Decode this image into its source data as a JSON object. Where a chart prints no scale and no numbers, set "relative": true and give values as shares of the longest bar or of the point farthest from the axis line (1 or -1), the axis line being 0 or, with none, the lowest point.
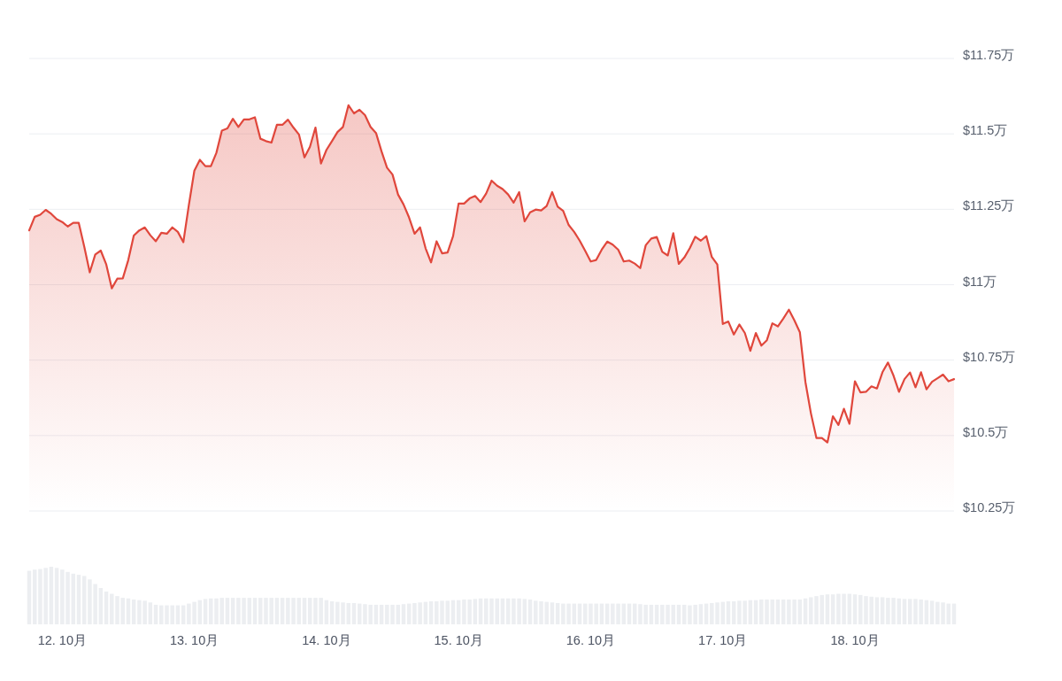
{
  "chart_data": [
    {
      "type": "area",
      "color": "#e0473c",
      "grid": "y",
      "tick_labels": "y",
      "xlim": [
        "--10-11T18:00",
        "--10-18T18:00"
      ],
      "ylim": [
        10.25,
        11.75
      ],
      "yticks": [
        {
          "value": 10.25,
          "label": "$10.25万"
        },
        {
          "value": 10.5,
          "label": "$10.5万"
        },
        {
          "value": 10.75,
          "label": "$10.75万"
        },
        {
          "value": 11,
          "label": "$11万"
        },
        {
          "value": 11.25,
          "label": "$11.25万"
        },
        {
          "value": 11.5,
          "label": "$11.5万"
        },
        {
          "value": 11.75,
          "label": "$11.75万"
        }
      ],
      "x": [
        "--10-11T18:00",
        "--10-11T19:00",
        "--10-11T20:00",
        "--10-11T21:00",
        "--10-11T22:00",
        "--10-11T23:00",
        "--10-12T00:00",
        "--10-12T01:00",
        "--10-12T02:00",
        "--10-12T03:00",
        "--10-12T04:00",
        "--10-12T05:00",
        "--10-12T06:00",
        "--10-12T07:00",
        "--10-12T08:00",
        "--10-12T09:00",
        "--10-12T10:00",
        "--10-12T11:00",
        "--10-12T12:00",
        "--10-12T13:00",
        "--10-12T14:00",
        "--10-12T15:00",
        "--10-12T16:00",
        "--10-12T17:00",
        "--10-12T18:00",
        "--10-12T19:00",
        "--10-12T20:00",
        "--10-12T21:00",
        "--10-12T22:00",
        "--10-12T23:00",
        "--10-13T00:00",
        "--10-13T01:00",
        "--10-13T02:00",
        "--10-13T03:00",
        "--10-13T04:00",
        "--10-13T05:00",
        "--10-13T06:00",
        "--10-13T07:00",
        "--10-13T08:00",
        "--10-13T09:00",
        "--10-13T10:00",
        "--10-13T11:00",
        "--10-13T12:00",
        "--10-13T13:00",
        "--10-13T14:00",
        "--10-13T15:00",
        "--10-13T16:00",
        "--10-13T17:00",
        "--10-13T18:00",
        "--10-13T19:00",
        "--10-13T20:00",
        "--10-13T21:00",
        "--10-13T22:00",
        "--10-13T23:00",
        "--10-14T00:00",
        "--10-14T01:00",
        "--10-14T02:00",
        "--10-14T03:00",
        "--10-14T04:00",
        "--10-14T05:00",
        "--10-14T06:00",
        "--10-14T07:00",
        "--10-14T08:00",
        "--10-14T09:00",
        "--10-14T10:00",
        "--10-14T11:00",
        "--10-14T12:00",
        "--10-14T13:00",
        "--10-14T14:00",
        "--10-14T15:00",
        "--10-14T16:00",
        "--10-14T17:00",
        "--10-14T18:00",
        "--10-14T19:00",
        "--10-14T20:00",
        "--10-14T21:00",
        "--10-14T22:00",
        "--10-14T23:00",
        "--10-15T00:00",
        "--10-15T01:00",
        "--10-15T02:00",
        "--10-15T03:00",
        "--10-15T04:00",
        "--10-15T05:00",
        "--10-15T06:00",
        "--10-15T07:00",
        "--10-15T08:00",
        "--10-15T09:00",
        "--10-15T10:00",
        "--10-15T11:00",
        "--10-15T12:00",
        "--10-15T13:00",
        "--10-15T14:00",
        "--10-15T15:00",
        "--10-15T16:00",
        "--10-15T17:00",
        "--10-15T18:00",
        "--10-15T19:00",
        "--10-15T20:00",
        "--10-15T21:00",
        "--10-15T22:00",
        "--10-15T23:00",
        "--10-16T00:00",
        "--10-16T01:00",
        "--10-16T02:00",
        "--10-16T03:00",
        "--10-16T04:00",
        "--10-16T05:00",
        "--10-16T06:00",
        "--10-16T07:00",
        "--10-16T08:00",
        "--10-16T09:00",
        "--10-16T10:00",
        "--10-16T11:00",
        "--10-16T12:00",
        "--10-16T13:00",
        "--10-16T14:00",
        "--10-16T15:00",
        "--10-16T16:00",
        "--10-16T17:00",
        "--10-16T18:00",
        "--10-16T19:00",
        "--10-16T20:00",
        "--10-16T21:00",
        "--10-16T22:00",
        "--10-16T23:00",
        "--10-17T00:00",
        "--10-17T01:00",
        "--10-17T02:00",
        "--10-17T03:00",
        "--10-17T04:00",
        "--10-17T05:00",
        "--10-17T06:00",
        "--10-17T07:00",
        "--10-17T08:00",
        "--10-17T09:00",
        "--10-17T10:00",
        "--10-17T11:00",
        "--10-17T12:00",
        "--10-17T13:00",
        "--10-17T14:00",
        "--10-17T15:00",
        "--10-17T16:00",
        "--10-17T17:00",
        "--10-17T18:00",
        "--10-17T19:00",
        "--10-17T20:00",
        "--10-17T21:00",
        "--10-17T22:00",
        "--10-17T23:00",
        "--10-18T00:00",
        "--10-18T01:00",
        "--10-18T02:00",
        "--10-18T03:00",
        "--10-18T04:00",
        "--10-18T05:00",
        "--10-18T06:00",
        "--10-18T07:00",
        "--10-18T08:00",
        "--10-18T09:00",
        "--10-18T10:00",
        "--10-18T11:00",
        "--10-18T12:00",
        "--10-18T13:00",
        "--10-18T14:00",
        "--10-18T15:00",
        "--10-18T16:00",
        "--10-18T17:00",
        "--10-18T18:00"
      ],
      "values": [
        11.18,
        11.225,
        11.232,
        11.248,
        11.235,
        11.217,
        11.208,
        11.193,
        11.205,
        11.205,
        11.126,
        11.041,
        11.1,
        11.113,
        11.067,
        10.988,
        11.02,
        11.021,
        11.082,
        11.163,
        11.18,
        11.19,
        11.164,
        11.144,
        11.172,
        11.169,
        11.19,
        11.175,
        11.141,
        11.264,
        11.378,
        11.414,
        11.393,
        11.393,
        11.437,
        11.511,
        11.518,
        11.55,
        11.523,
        11.548,
        11.548,
        11.555,
        11.484,
        11.476,
        11.471,
        11.53,
        11.53,
        11.547,
        11.521,
        11.498,
        11.422,
        11.457,
        11.521,
        11.402,
        11.447,
        11.476,
        11.506,
        11.523,
        11.595,
        11.568,
        11.58,
        11.562,
        11.523,
        11.503,
        11.442,
        11.388,
        11.365,
        11.299,
        11.266,
        11.223,
        11.169,
        11.19,
        11.121,
        11.074,
        11.144,
        11.104,
        11.107,
        11.161,
        11.269,
        11.269,
        11.286,
        11.294,
        11.274,
        11.302,
        11.345,
        11.328,
        11.317,
        11.299,
        11.272,
        11.307,
        11.21,
        11.24,
        11.249,
        11.246,
        11.261,
        11.307,
        11.259,
        11.245,
        11.198,
        11.175,
        11.146,
        11.112,
        11.077,
        11.082,
        11.116,
        11.143,
        11.133,
        11.116,
        11.077,
        11.08,
        11.07,
        11.055,
        11.131,
        11.153,
        11.158,
        11.109,
        11.097,
        11.171,
        11.069,
        11.09,
        11.121,
        11.159,
        11.146,
        11.161,
        11.092,
        11.067,
        10.87,
        10.878,
        10.835,
        10.868,
        10.84,
        10.781,
        10.84,
        10.798,
        10.816,
        10.872,
        10.862,
        10.888,
        10.917,
        10.882,
        10.842,
        10.678,
        10.574,
        10.492,
        10.492,
        10.477,
        10.564,
        10.535,
        10.589,
        10.539,
        10.68,
        10.643,
        10.645,
        10.663,
        10.656,
        10.71,
        10.742,
        10.699,
        10.645,
        10.687,
        10.709,
        10.66,
        10.71,
        10.653,
        10.678,
        10.69,
        10.702,
        10.68,
        10.687
      ]
    },
    {
      "type": "bar",
      "relative": true,
      "color": "#eceef1",
      "tick_labels": "x",
      "xlim": [
        "--10-11T18:00",
        "--10-18T18:00"
      ],
      "xticks": [
        {
          "value": "--10-12",
          "label": "12. 10月"
        },
        {
          "value": "--10-13",
          "label": "13. 10月"
        },
        {
          "value": "--10-14",
          "label": "14. 10月"
        },
        {
          "value": "--10-15",
          "label": "15. 10月"
        },
        {
          "value": "--10-16",
          "label": "16. 10月"
        },
        {
          "value": "--10-17",
          "label": "17. 10月"
        },
        {
          "value": "--10-18",
          "label": "18. 10月"
        }
      ],
      "x": [
        "--10-11T18:00",
        "--10-11T19:00",
        "--10-11T20:00",
        "--10-11T21:00",
        "--10-11T22:00",
        "--10-11T23:00",
        "--10-12T00:00",
        "--10-12T01:00",
        "--10-12T02:00",
        "--10-12T03:00",
        "--10-12T04:00",
        "--10-12T05:00",
        "--10-12T06:00",
        "--10-12T07:00",
        "--10-12T08:00",
        "--10-12T09:00",
        "--10-12T10:00",
        "--10-12T11:00",
        "--10-12T12:00",
        "--10-12T13:00",
        "--10-12T14:00",
        "--10-12T15:00",
        "--10-12T16:00",
        "--10-12T17:00",
        "--10-12T18:00",
        "--10-12T19:00",
        "--10-12T20:00",
        "--10-12T21:00",
        "--10-12T22:00",
        "--10-12T23:00",
        "--10-13T00:00",
        "--10-13T01:00",
        "--10-13T02:00",
        "--10-13T03:00",
        "--10-13T04:00",
        "--10-13T05:00",
        "--10-13T06:00",
        "--10-13T07:00",
        "--10-13T08:00",
        "--10-13T09:00",
        "--10-13T10:00",
        "--10-13T11:00",
        "--10-13T12:00",
        "--10-13T13:00",
        "--10-13T14:00",
        "--10-13T15:00",
        "--10-13T16:00",
        "--10-13T17:00",
        "--10-13T18:00",
        "--10-13T19:00",
        "--10-13T20:00",
        "--10-13T21:00",
        "--10-13T22:00",
        "--10-13T23:00",
        "--10-14T00:00",
        "--10-14T01:00",
        "--10-14T02:00",
        "--10-14T03:00",
        "--10-14T04:00",
        "--10-14T05:00",
        "--10-14T06:00",
        "--10-14T07:00",
        "--10-14T08:00",
        "--10-14T09:00",
        "--10-14T10:00",
        "--10-14T11:00",
        "--10-14T12:00",
        "--10-14T13:00",
        "--10-14T14:00",
        "--10-14T15:00",
        "--10-14T16:00",
        "--10-14T17:00",
        "--10-14T18:00",
        "--10-14T19:00",
        "--10-14T20:00",
        "--10-14T21:00",
        "--10-14T22:00",
        "--10-14T23:00",
        "--10-15T00:00",
        "--10-15T01:00",
        "--10-15T02:00",
        "--10-15T03:00",
        "--10-15T04:00",
        "--10-15T05:00",
        "--10-15T06:00",
        "--10-15T07:00",
        "--10-15T08:00",
        "--10-15T09:00",
        "--10-15T10:00",
        "--10-15T11:00",
        "--10-15T12:00",
        "--10-15T13:00",
        "--10-15T14:00",
        "--10-15T15:00",
        "--10-15T16:00",
        "--10-15T17:00",
        "--10-15T18:00",
        "--10-15T19:00",
        "--10-15T20:00",
        "--10-15T21:00",
        "--10-15T22:00",
        "--10-15T23:00",
        "--10-16T00:00",
        "--10-16T01:00",
        "--10-16T02:00",
        "--10-16T03:00",
        "--10-16T04:00",
        "--10-16T05:00",
        "--10-16T06:00",
        "--10-16T07:00",
        "--10-16T08:00",
        "--10-16T09:00",
        "--10-16T10:00",
        "--10-16T11:00",
        "--10-16T12:00",
        "--10-16T13:00",
        "--10-16T14:00",
        "--10-16T15:00",
        "--10-16T16:00",
        "--10-16T17:00",
        "--10-16T18:00",
        "--10-16T19:00",
        "--10-16T20:00",
        "--10-16T21:00",
        "--10-16T22:00",
        "--10-16T23:00",
        "--10-17T00:00",
        "--10-17T01:00",
        "--10-17T02:00",
        "--10-17T03:00",
        "--10-17T04:00",
        "--10-17T05:00",
        "--10-17T06:00",
        "--10-17T07:00",
        "--10-17T08:00",
        "--10-17T09:00",
        "--10-17T10:00",
        "--10-17T11:00",
        "--10-17T12:00",
        "--10-17T13:00",
        "--10-17T14:00",
        "--10-17T15:00",
        "--10-17T16:00",
        "--10-17T17:00",
        "--10-17T18:00",
        "--10-17T19:00",
        "--10-17T20:00",
        "--10-17T21:00",
        "--10-17T22:00",
        "--10-17T23:00",
        "--10-18T00:00",
        "--10-18T01:00",
        "--10-18T02:00",
        "--10-18T03:00",
        "--10-18T04:00",
        "--10-18T05:00",
        "--10-18T06:00",
        "--10-18T07:00",
        "--10-18T08:00",
        "--10-18T09:00",
        "--10-18T10:00",
        "--10-18T11:00",
        "--10-18T12:00",
        "--10-18T13:00",
        "--10-18T14:00",
        "--10-18T15:00",
        "--10-18T16:00",
        "--10-18T17:00",
        "--10-18T18:00"
      ],
      "values": [
        0.93,
        0.95,
        0.96,
        0.98,
        1,
        0.98,
        0.95,
        0.91,
        0.88,
        0.86,
        0.84,
        0.78,
        0.7,
        0.63,
        0.57,
        0.53,
        0.49,
        0.46,
        0.45,
        0.43,
        0.42,
        0.41,
        0.38,
        0.34,
        0.33,
        0.33,
        0.33,
        0.33,
        0.33,
        0.36,
        0.39,
        0.42,
        0.44,
        0.45,
        0.45,
        0.46,
        0.46,
        0.46,
        0.46,
        0.46,
        0.46,
        0.46,
        0.46,
        0.46,
        0.46,
        0.46,
        0.46,
        0.46,
        0.46,
        0.46,
        0.46,
        0.46,
        0.46,
        0.46,
        0.42,
        0.4,
        0.39,
        0.38,
        0.37,
        0.37,
        0.36,
        0.35,
        0.34,
        0.34,
        0.34,
        0.34,
        0.34,
        0.34,
        0.35,
        0.36,
        0.37,
        0.38,
        0.39,
        0.4,
        0.4,
        0.41,
        0.41,
        0.42,
        0.42,
        0.43,
        0.43,
        0.44,
        0.45,
        0.45,
        0.45,
        0.45,
        0.45,
        0.45,
        0.45,
        0.45,
        0.44,
        0.43,
        0.41,
        0.4,
        0.39,
        0.38,
        0.37,
        0.36,
        0.36,
        0.36,
        0.36,
        0.36,
        0.36,
        0.36,
        0.36,
        0.36,
        0.36,
        0.36,
        0.36,
        0.36,
        0.36,
        0.35,
        0.34,
        0.34,
        0.34,
        0.34,
        0.34,
        0.34,
        0.34,
        0.34,
        0.33,
        0.34,
        0.35,
        0.36,
        0.37,
        0.38,
        0.39,
        0.4,
        0.4,
        0.41,
        0.41,
        0.42,
        0.42,
        0.43,
        0.43,
        0.43,
        0.43,
        0.43,
        0.43,
        0.43,
        0.43,
        0.45,
        0.47,
        0.49,
        0.51,
        0.52,
        0.52,
        0.53,
        0.53,
        0.53,
        0.52,
        0.51,
        0.49,
        0.48,
        0.47,
        0.47,
        0.46,
        0.46,
        0.45,
        0.44,
        0.44,
        0.44,
        0.43,
        0.42,
        0.41,
        0.39,
        0.38,
        0.36,
        0.36
      ]
    }
  ]
}
